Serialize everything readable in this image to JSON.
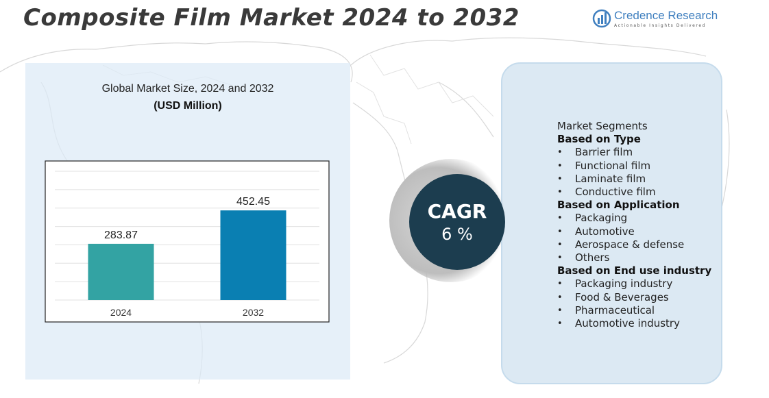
{
  "page": {
    "title": "Composite Film Market 2024 to 2032"
  },
  "brand": {
    "name": "Credence Research",
    "tagline": "Actionable Insights Delivered"
  },
  "chart_data": {
    "type": "bar",
    "title": "Global Market Size, 2024 and 2032",
    "subtitle": "(USD Million)",
    "categories": [
      "2024",
      "2032"
    ],
    "values": [
      283.87,
      452.45
    ],
    "value_labels": [
      "283.87",
      "452.45"
    ],
    "bar_colors": [
      "#33a3a3",
      "#0a7fb2"
    ],
    "ylim": [
      0,
      650
    ],
    "grid": true,
    "xlabel": "",
    "ylabel": ""
  },
  "cagr": {
    "label": "CAGR",
    "value": "6 %"
  },
  "segments": {
    "heading": "Market Segments",
    "groups": [
      {
        "title": "Based on Type",
        "items": [
          "Barrier film",
          "Functional film",
          "Laminate film",
          "Conductive film"
        ]
      },
      {
        "title": "Based on Application",
        "items": [
          "Packaging",
          "Automotive",
          "Aerospace & defense",
          "Others"
        ]
      },
      {
        "title": "Based on End use industry",
        "items": [
          "Packaging industry",
          "Food & Beverages",
          "Pharmaceutical",
          "Automotive industry"
        ]
      }
    ]
  },
  "colors": {
    "title": "#3a3a3a",
    "cagr_circle": "#1c3d4f",
    "panel_bg": "#dce9f3"
  }
}
